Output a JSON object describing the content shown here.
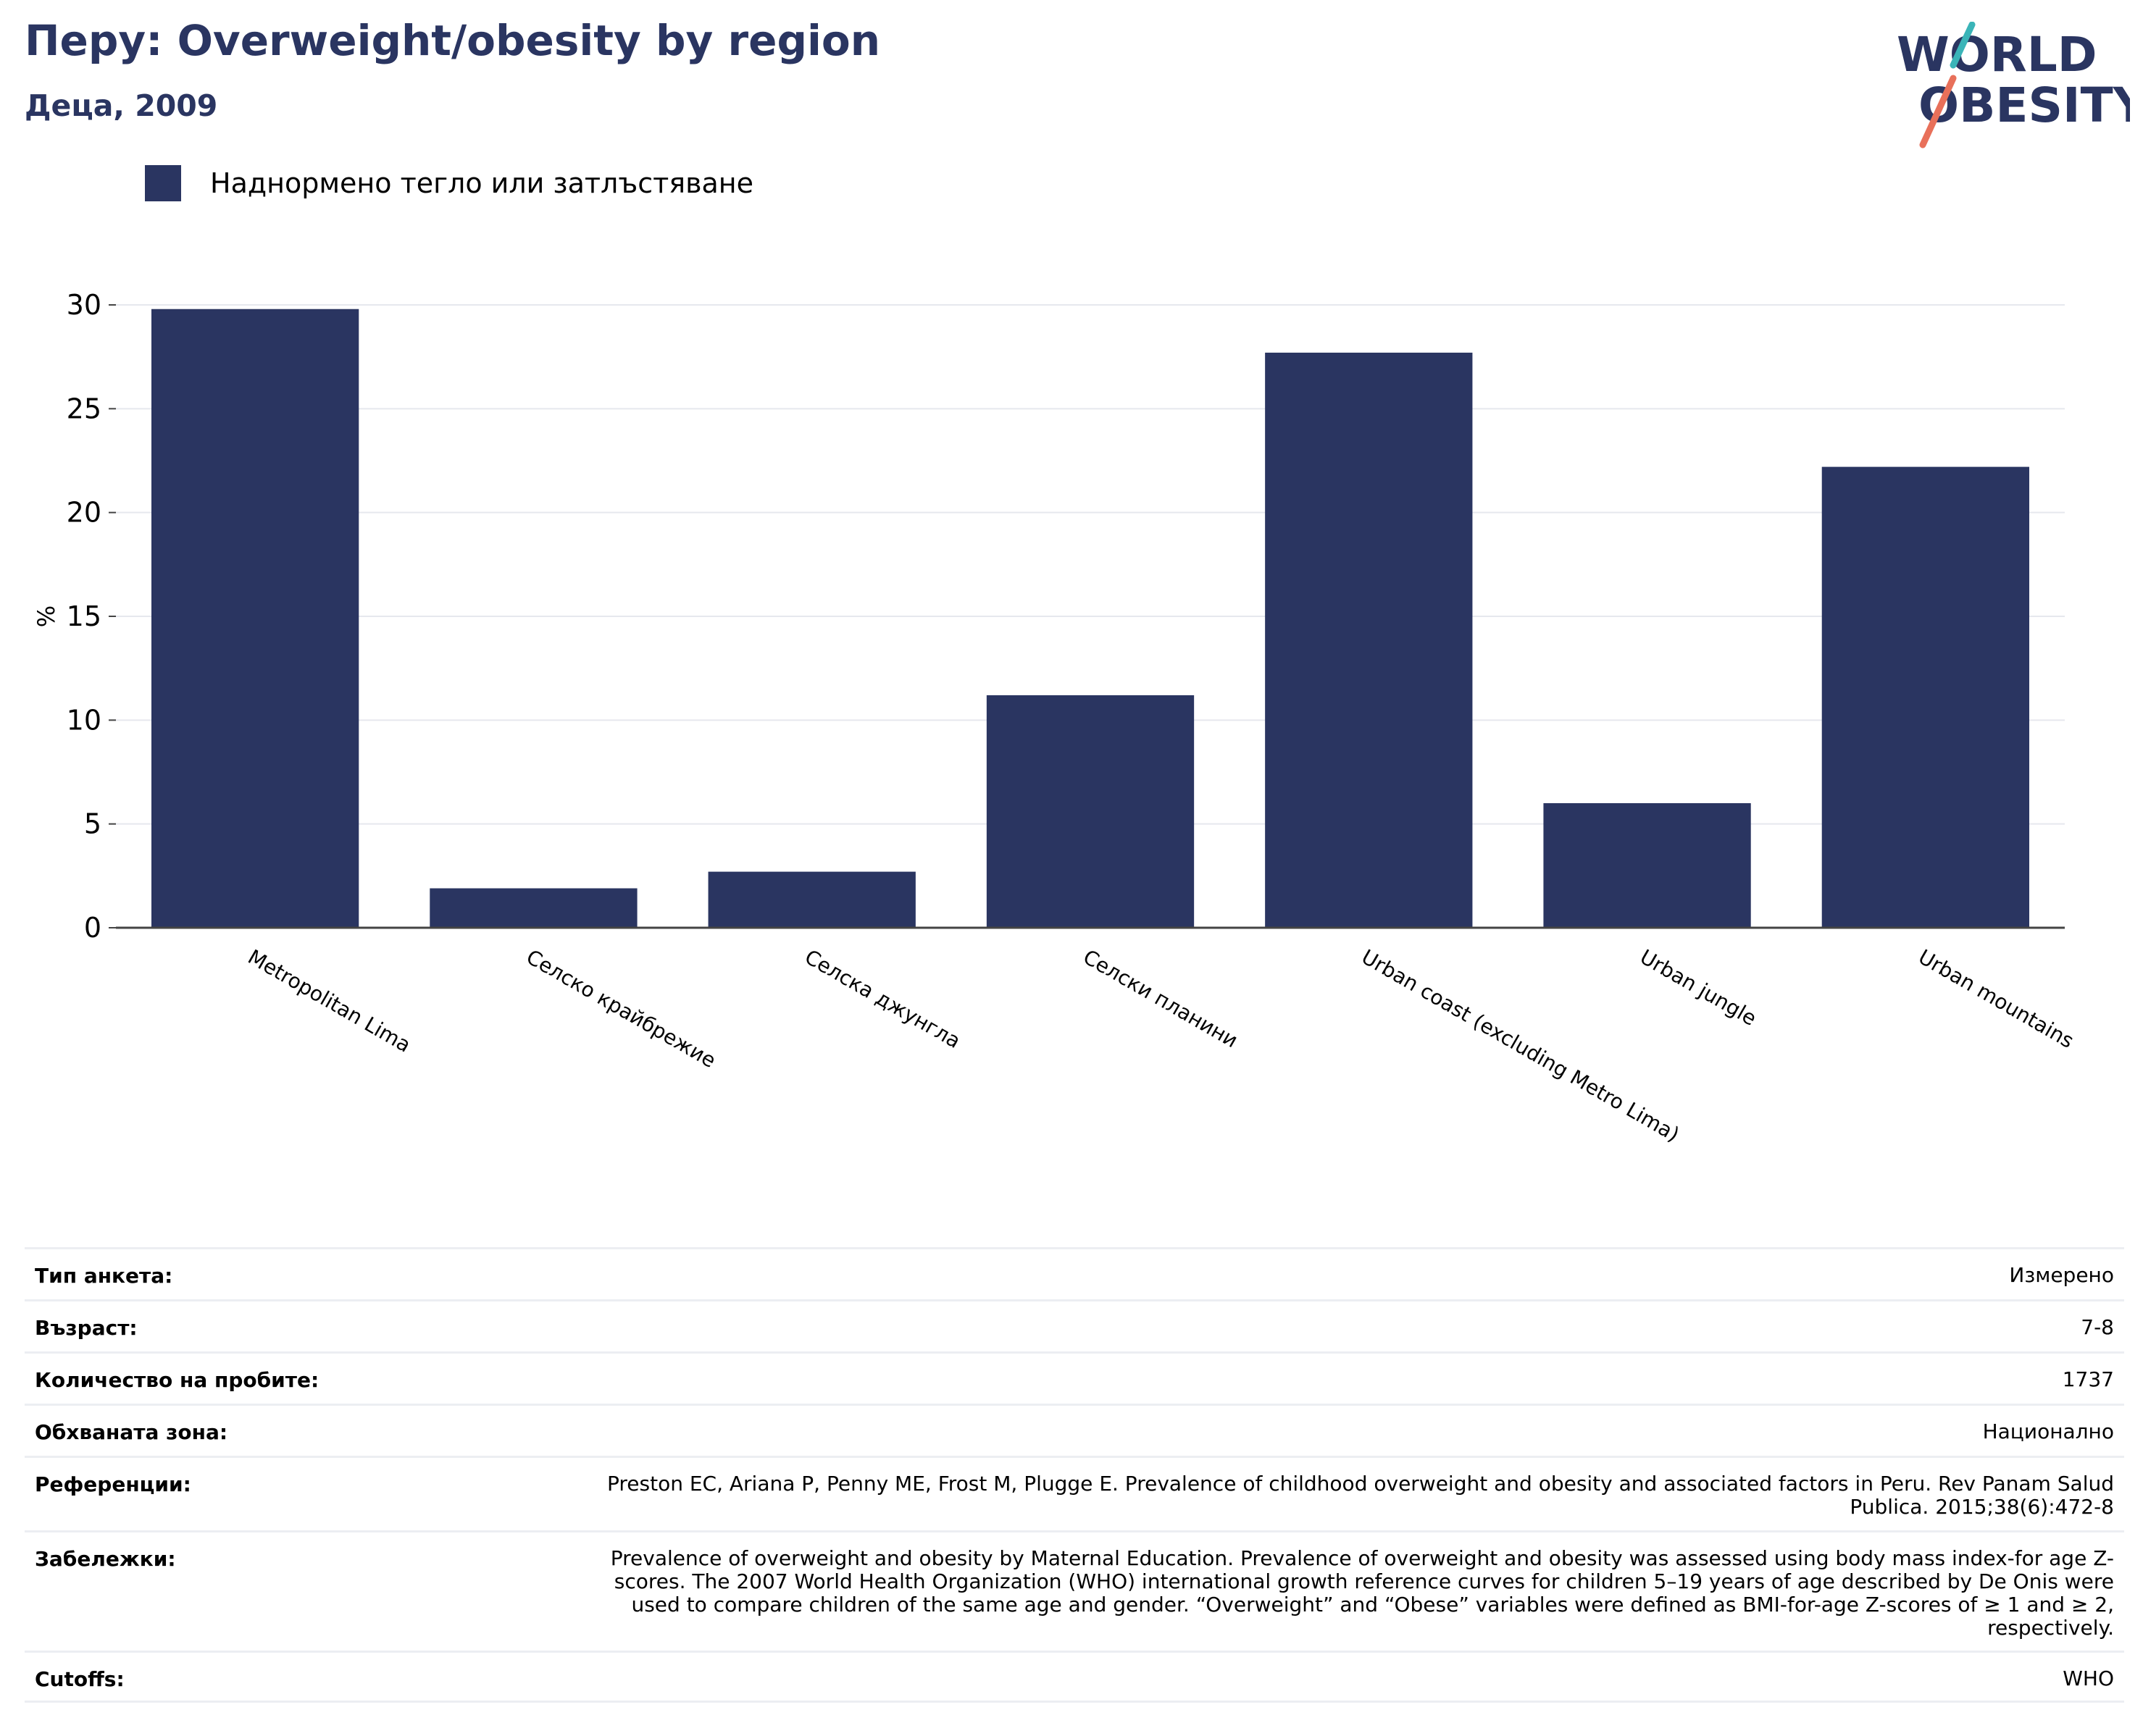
{
  "header": {
    "title": "Перу: Overweight/obesity by region",
    "subtitle": "Деца, 2009"
  },
  "logo": {
    "line1": "WORLD",
    "line2": "OBESITY",
    "colors": {
      "text": "#2a3561",
      "slash_teal": "#3ab4b8",
      "slash_coral": "#e8705a"
    }
  },
  "legend": {
    "label": "Наднормено тегло или затлъстяване",
    "color": "#2a3561"
  },
  "chart_data": {
    "type": "bar",
    "title": "Перу: Overweight/obesity by region",
    "subtitle": "Деца, 2009",
    "ylabel": "%",
    "xlabel": "",
    "ylim": [
      0,
      30
    ],
    "yticks": [
      "0",
      "5",
      "10",
      "15",
      "20",
      "25",
      "30"
    ],
    "grid": true,
    "legend_position": "top-left",
    "categories": [
      "Metropolitan Lima",
      "Селско крайбрежие",
      "Селска джунгла",
      "Селски планини",
      "Urban coast (excluding Metro Lima)",
      "Urban jungle",
      "Urban mountains"
    ],
    "series": [
      {
        "name": "Наднормено тегло или затлъстяване",
        "color": "#2a3561",
        "values": [
          29.8,
          1.9,
          2.7,
          11.2,
          27.7,
          6.0,
          22.2
        ]
      }
    ]
  },
  "info": {
    "rows": [
      {
        "label": "Тип анкета:",
        "value": "Измерено"
      },
      {
        "label": "Възраст:",
        "value": "7-8"
      },
      {
        "label": "Количество на пробите:",
        "value": "1737"
      },
      {
        "label": "Обхваната зона:",
        "value": "Национално"
      },
      {
        "label": "Референции:",
        "value": "Preston EC, Ariana P, Penny ME, Frost M, Plugge E. Prevalence of childhood overweight and obesity and associated factors in Peru. Rev Panam Salud Publica. 2015;38(6):472-8"
      },
      {
        "label": "Забележки:",
        "value": "Prevalence of overweight and obesity by Maternal Education. Prevalence of overweight and obesity was assessed using body mass index-for age Z-scores. The 2007 World Health Organization (WHO) international growth reference curves for children 5–19 years of age described by De Onis were used to compare children of the same age and gender. “Overweight” and “Obese” variables were defined as BMI-for-age Z-scores of ≥ 1 and ≥ 2, respectively."
      },
      {
        "label": "Cutoffs:",
        "value": "WHO"
      }
    ]
  }
}
